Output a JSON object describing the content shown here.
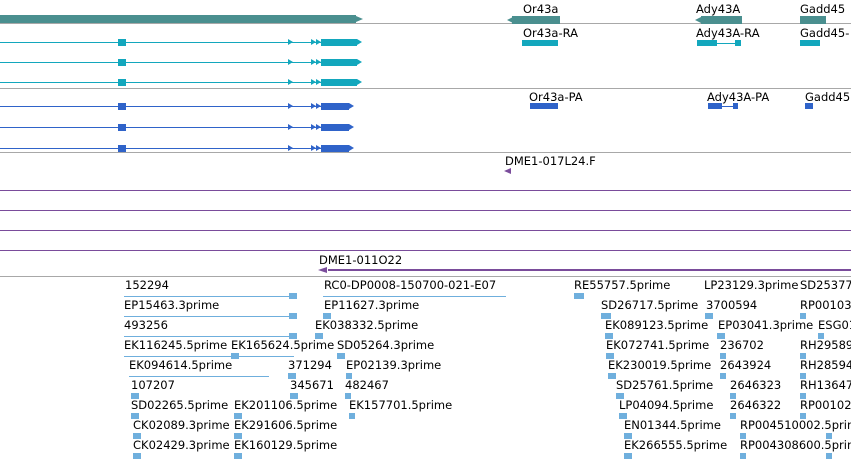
{
  "colors": {
    "gene": "#4a8f8f",
    "transcript": "#13a7bd",
    "protein": "#2f63c9",
    "clone": "#7a4c9b",
    "est": "#6fafdd",
    "separator": "#a8a8a8"
  },
  "tracks": {
    "genes": {
      "labels": [
        "Or43a",
        "Ady43A",
        "Gadd45"
      ]
    },
    "transcripts": {
      "labels": [
        "Or43a-RA",
        "Ady43A-RA",
        "Gadd45-"
      ]
    },
    "proteins": {
      "labels": [
        "Or43a-PA",
        "Ady43A-PA",
        "Gadd45"
      ]
    },
    "bac_end": {
      "label": "DME1-017L24.F"
    },
    "bac_clone": {
      "label": "DME1-011O22"
    },
    "est": {
      "labels": [
        "152294",
        "RC0-DP0008-150700-021-E07",
        "RE55757.5prime",
        "LP23129.3prime",
        "SD25377",
        "EP15463.3prime",
        "EP11627.3prime",
        "SD26717.5prime",
        "3700594",
        "RP00103",
        "493256",
        "EK038332.5prime",
        "EK089123.5prime",
        "EP03041.3prime",
        "ESG01",
        "EK116245.5prime",
        "EK165624.5prime",
        "SD05264.3prime",
        "EK072741.5prime",
        "236702",
        "RH29589",
        "EK094614.5prime",
        "371294",
        "EP02139.3prime",
        "EK230019.5prime",
        "2643924",
        "RH28594",
        "107207",
        "345671",
        "482467",
        "SD25761.5prime",
        "2646323",
        "RH13647",
        "SD02265.5prime",
        "EK201106.5prime",
        "EK157701.5prime",
        "LP04094.5prime",
        "2646322",
        "RP00102",
        "CK02089.3prime",
        "EK291606.5prime",
        "EN01344.5prime",
        "RP004510002.5prime",
        "CK02429.3prime",
        "EK160129.5prime",
        "EK266555.5prime",
        "RP004308600.5prime"
      ]
    }
  }
}
